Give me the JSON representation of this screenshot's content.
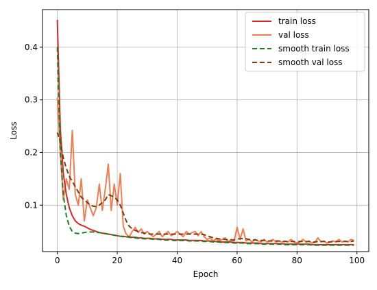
{
  "chart_data": {
    "type": "line",
    "xlabel": "Epoch",
    "ylabel": "Loss",
    "xlim": [
      -4.95,
      103.95
    ],
    "ylim": [
      0.0118,
      0.4714
    ],
    "xticks": [
      0,
      20,
      40,
      60,
      80,
      100
    ],
    "yticks": [
      0.1,
      0.2,
      0.3,
      0.4
    ],
    "grid": true,
    "legend_position": "top-right",
    "x": [
      0,
      1,
      2,
      3,
      4,
      5,
      6,
      7,
      8,
      9,
      10,
      11,
      12,
      13,
      14,
      15,
      16,
      17,
      18,
      19,
      20,
      21,
      22,
      23,
      24,
      25,
      26,
      27,
      28,
      29,
      30,
      31,
      32,
      33,
      34,
      35,
      36,
      37,
      38,
      39,
      40,
      41,
      42,
      43,
      44,
      45,
      46,
      47,
      48,
      49,
      50,
      51,
      52,
      53,
      54,
      55,
      56,
      57,
      58,
      59,
      60,
      61,
      62,
      63,
      64,
      65,
      66,
      67,
      68,
      69,
      70,
      71,
      72,
      73,
      74,
      75,
      76,
      77,
      78,
      79,
      80,
      81,
      82,
      83,
      84,
      85,
      86,
      87,
      88,
      89,
      90,
      91,
      92,
      93,
      94,
      95,
      96,
      97,
      98,
      99
    ],
    "series": [
      {
        "name": "train loss",
        "color": "#d62728",
        "dash": "solid",
        "values": [
          0.452,
          0.245,
          0.16,
          0.12,
          0.095,
          0.08,
          0.07,
          0.065,
          0.062,
          0.06,
          0.057,
          0.054,
          0.052,
          0.05,
          0.048,
          0.047,
          0.046,
          0.045,
          0.044,
          0.043,
          0.042,
          0.041,
          0.041,
          0.04,
          0.04,
          0.039,
          0.039,
          0.038,
          0.038,
          0.037,
          0.037,
          0.037,
          0.036,
          0.036,
          0.036,
          0.035,
          0.035,
          0.035,
          0.035,
          0.034,
          0.034,
          0.034,
          0.034,
          0.034,
          0.033,
          0.033,
          0.033,
          0.033,
          0.033,
          0.032,
          0.032,
          0.032,
          0.031,
          0.031,
          0.031,
          0.03,
          0.03,
          0.03,
          0.03,
          0.029,
          0.029,
          0.029,
          0.029,
          0.028,
          0.028,
          0.028,
          0.028,
          0.028,
          0.027,
          0.027,
          0.027,
          0.027,
          0.027,
          0.027,
          0.027,
          0.027,
          0.026,
          0.026,
          0.026,
          0.026,
          0.026,
          0.026,
          0.026,
          0.026,
          0.026,
          0.025,
          0.025,
          0.025,
          0.025,
          0.025,
          0.025,
          0.025,
          0.025,
          0.025,
          0.025,
          0.025,
          0.025,
          0.025,
          0.025,
          0.025
        ]
      },
      {
        "name": "val loss",
        "color": "#f07d4f",
        "dash": "solid",
        "values": [
          0.305,
          0.2,
          0.11,
          0.15,
          0.13,
          0.242,
          0.12,
          0.1,
          0.15,
          0.07,
          0.11,
          0.095,
          0.08,
          0.095,
          0.14,
          0.09,
          0.13,
          0.178,
          0.09,
          0.14,
          0.1,
          0.16,
          0.06,
          0.045,
          0.04,
          0.05,
          0.058,
          0.048,
          0.055,
          0.045,
          0.05,
          0.045,
          0.04,
          0.045,
          0.05,
          0.04,
          0.045,
          0.05,
          0.042,
          0.045,
          0.05,
          0.045,
          0.04,
          0.05,
          0.045,
          0.048,
          0.05,
          0.042,
          0.05,
          0.04,
          0.035,
          0.038,
          0.032,
          0.036,
          0.032,
          0.035,
          0.038,
          0.03,
          0.035,
          0.032,
          0.058,
          0.035,
          0.055,
          0.032,
          0.035,
          0.03,
          0.035,
          0.032,
          0.03,
          0.035,
          0.03,
          0.032,
          0.035,
          0.03,
          0.032,
          0.03,
          0.032,
          0.03,
          0.035,
          0.03,
          0.028,
          0.03,
          0.035,
          0.03,
          0.032,
          0.028,
          0.03,
          0.038,
          0.03,
          0.032,
          0.028,
          0.03,
          0.032,
          0.03,
          0.035,
          0.03,
          0.032,
          0.03,
          0.035,
          0.033
        ]
      },
      {
        "name": "smooth train loss",
        "color": "#1a7f1a",
        "dash": "dashed",
        "values": [
          0.4,
          0.2,
          0.12,
          0.08,
          0.06,
          0.05,
          0.047,
          0.046,
          0.047,
          0.048,
          0.049,
          0.049,
          0.049,
          0.048,
          0.048,
          0.047,
          0.046,
          0.045,
          0.044,
          0.043,
          0.042,
          0.041,
          0.04,
          0.04,
          0.039,
          0.038,
          0.038,
          0.037,
          0.037,
          0.036,
          0.036,
          0.036,
          0.035,
          0.035,
          0.035,
          0.034,
          0.034,
          0.034,
          0.034,
          0.033,
          0.033,
          0.033,
          0.033,
          0.033,
          0.032,
          0.032,
          0.032,
          0.032,
          0.032,
          0.031,
          0.031,
          0.031,
          0.03,
          0.03,
          0.03,
          0.029,
          0.029,
          0.029,
          0.029,
          0.028,
          0.028,
          0.028,
          0.028,
          0.027,
          0.027,
          0.027,
          0.027,
          0.027,
          0.026,
          0.026,
          0.026,
          0.026,
          0.026,
          0.026,
          0.026,
          0.026,
          0.025,
          0.025,
          0.025,
          0.025,
          0.025,
          0.025,
          0.025,
          0.025,
          0.025,
          0.024,
          0.024,
          0.024,
          0.024,
          0.024,
          0.024,
          0.024,
          0.024,
          0.024,
          0.024,
          0.024,
          0.024,
          0.024,
          0.024,
          0.024
        ]
      },
      {
        "name": "smooth val loss",
        "color": "#7a3b0c",
        "dash": "dashed",
        "values": [
          0.238,
          0.22,
          0.19,
          0.17,
          0.155,
          0.145,
          0.135,
          0.125,
          0.115,
          0.11,
          0.105,
          0.1,
          0.098,
          0.097,
          0.1,
          0.105,
          0.11,
          0.12,
          0.118,
          0.115,
          0.11,
          0.1,
          0.085,
          0.07,
          0.06,
          0.055,
          0.052,
          0.05,
          0.048,
          0.047,
          0.046,
          0.045,
          0.045,
          0.045,
          0.045,
          0.045,
          0.045,
          0.045,
          0.045,
          0.045,
          0.045,
          0.045,
          0.045,
          0.045,
          0.045,
          0.045,
          0.045,
          0.045,
          0.045,
          0.044,
          0.042,
          0.04,
          0.038,
          0.037,
          0.036,
          0.035,
          0.035,
          0.034,
          0.034,
          0.034,
          0.036,
          0.036,
          0.037,
          0.036,
          0.035,
          0.034,
          0.034,
          0.033,
          0.033,
          0.033,
          0.032,
          0.032,
          0.032,
          0.032,
          0.032,
          0.031,
          0.031,
          0.031,
          0.031,
          0.031,
          0.031,
          0.031,
          0.031,
          0.031,
          0.031,
          0.03,
          0.03,
          0.031,
          0.031,
          0.031,
          0.03,
          0.03,
          0.031,
          0.031,
          0.031,
          0.031,
          0.031,
          0.031,
          0.031,
          0.032
        ]
      }
    ]
  }
}
